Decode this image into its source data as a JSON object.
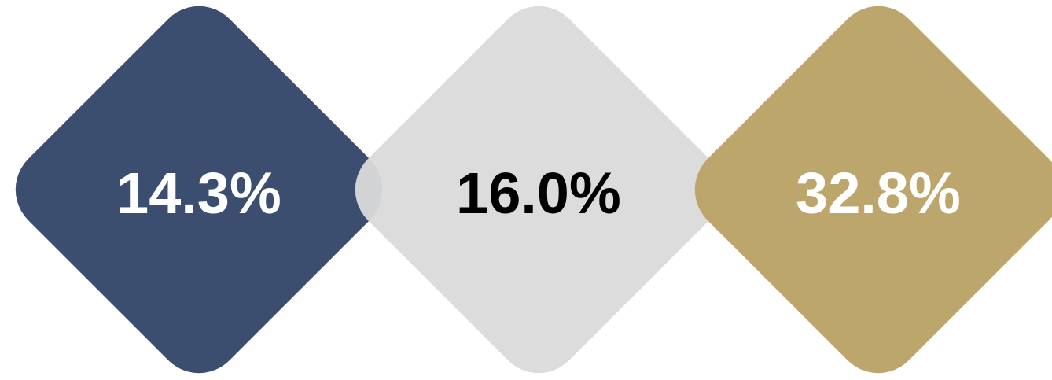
{
  "chart_data": {
    "type": "other",
    "categories": [
      null,
      null,
      null
    ],
    "values": [
      14.3,
      16.0,
      32.8
    ],
    "value_labels": [
      "14.3%",
      "16.0%",
      "32.8%"
    ],
    "colors": [
      "#314567",
      "#dadada",
      "#b8a163"
    ]
  }
}
